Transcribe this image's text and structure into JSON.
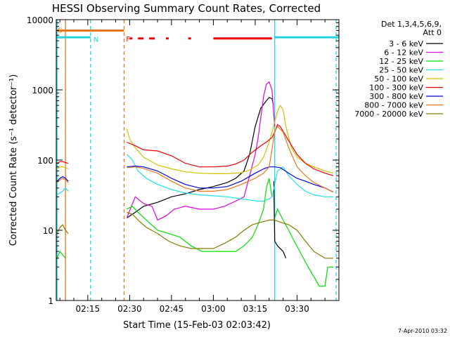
{
  "chart_data": {
    "type": "line",
    "title": "HESSI Observing Summary Count Rates, Corrected",
    "xlabel": "Start Time (15-Feb-03 02:03:42)",
    "ylabel": "Corrected Count Rate (s⁻¹ detector⁻¹)",
    "y_scale": "log",
    "ylim": [
      1,
      10000
    ],
    "xlim": [
      "02:03:42",
      "03:45:00"
    ],
    "x_ticks": [
      "02:15",
      "02:30",
      "02:45",
      "03:00",
      "03:15",
      "03:30"
    ],
    "y_ticks": [
      "1",
      "10",
      "100",
      "1000",
      "10000"
    ],
    "grid": false,
    "legend": {
      "title_lines": [
        "Det 1,3,4,5,6,9,",
        "Att 0"
      ],
      "position": "right"
    },
    "annotations": {
      "timestamp": "7-Apr-2010 03:32"
    },
    "flag_bars": {
      "letters": [
        "S",
        "N",
        "F"
      ],
      "saa": {
        "label": "S",
        "from": "02:04",
        "to": "02:28",
        "y": 7000,
        "color": "#e8761c"
      },
      "night_bars": [
        {
          "from": "02:03:42",
          "to": "02:16",
          "y": 5600,
          "color": "#22d4e0"
        },
        {
          "from": "03:22",
          "to": "03:45",
          "y": 5600,
          "color": "#22d4e0"
        }
      ],
      "night_label": {
        "label": "N",
        "at": "02:17"
      },
      "flare_label": {
        "label": "F",
        "at": "02:28"
      },
      "flare_segments": [
        {
          "from": "02:30",
          "to": "02:31",
          "color": "#ee0000"
        },
        {
          "from": "02:33",
          "to": "02:35",
          "color": "#ee0000"
        },
        {
          "from": "02:37",
          "to": "02:39",
          "color": "#ee0000"
        },
        {
          "from": "02:43",
          "to": "02:44",
          "color": "#ee0000"
        },
        {
          "from": "02:51",
          "to": "02:52",
          "color": "#ee0000"
        },
        {
          "from": "03:00",
          "to": "03:21",
          "color": "#ee0000"
        }
      ],
      "flare_y": 5400
    },
    "vlines": [
      {
        "t": "02:04",
        "color": "#22d4e0",
        "style": "solid"
      },
      {
        "t": "02:07",
        "color": "#e8761c",
        "style": "solid"
      },
      {
        "t": "02:16",
        "color": "#22d4e0",
        "style": "dashed"
      },
      {
        "t": "02:28",
        "color": "#e8761c",
        "style": "dashed"
      },
      {
        "t": "03:22",
        "color": "#22d4e0",
        "style": "solid"
      },
      {
        "t": "03:44",
        "color": "#22d4e0",
        "style": "dashed"
      }
    ],
    "series": [
      {
        "name": "3 - 6 keV",
        "color": "#000000",
        "segments": [
          {
            "x": [
              "02:29",
              "02:32",
              "02:35",
              "02:40",
              "02:45",
              "02:50",
              "02:55",
              "03:00",
              "03:05",
              "03:08",
              "03:11",
              "03:13",
              "03:15",
              "03:17",
              "03:19",
              "03:20",
              "03:21",
              "03:21:30"
            ],
            "y": [
              15,
              18,
              22,
              25,
              30,
              33,
              38,
              42,
              48,
              55,
              70,
              120,
              300,
              550,
              700,
              780,
              750,
              620
            ]
          },
          {
            "x": [
              "03:21:40",
              "03:22",
              "03:23",
              "03:25",
              "03:26"
            ],
            "y": [
              50,
              7,
              6,
              5,
              4
            ]
          }
        ]
      },
      {
        "name": "6 - 12 keV",
        "color": "#e000e0",
        "segments": [
          {
            "x": [
              "02:29",
              "02:32",
              "02:35",
              "02:38",
              "02:40",
              "02:43",
              "02:46",
              "02:50",
              "02:55",
              "03:00",
              "03:04",
              "03:08",
              "03:11",
              "03:13",
              "03:15",
              "03:16",
              "03:17",
              "03:18",
              "03:19",
              "03:20",
              "03:21",
              "03:22"
            ],
            "y": [
              15,
              30,
              24,
              22,
              14,
              16,
              20,
              22,
              20,
              20,
              22,
              26,
              30,
              60,
              120,
              200,
              400,
              800,
              1200,
              1300,
              1000,
              300
            ]
          }
        ]
      },
      {
        "name": "12 - 25 keV",
        "color": "#00e000",
        "segments": [
          {
            "x": [
              "02:04",
              "02:05",
              "02:07"
            ],
            "y": [
              4,
              5,
              4
            ]
          },
          {
            "x": [
              "02:29",
              "02:31",
              "02:33",
              "02:36",
              "02:40",
              "02:44",
              "02:48",
              "02:52",
              "02:56",
              "03:00",
              "03:04",
              "03:08",
              "03:11",
              "03:14",
              "03:16",
              "03:18",
              "03:19",
              "03:20",
              "03:21"
            ],
            "y": [
              20,
              22,
              18,
              14,
              10,
              9,
              8,
              6,
              5,
              5,
              5,
              5,
              6,
              8,
              12,
              20,
              40,
              55,
              30
            ]
          },
          {
            "x": [
              "03:22",
              "03:23",
              "03:25",
              "03:27",
              "03:29",
              "03:31",
              "03:34",
              "03:38",
              "03:40",
              "03:41",
              "03:42",
              "03:43"
            ],
            "y": [
              15,
              20,
              14,
              10,
              7,
              5,
              3,
              1.6,
              1.6,
              3,
              3,
              3
            ]
          }
        ]
      },
      {
        "name": "25 - 50 keV",
        "color": "#22e0e8",
        "segments": [
          {
            "x": [
              "02:04",
              "02:05",
              "02:06",
              "02:07",
              "02:08"
            ],
            "y": [
              32,
              34,
              36,
              40,
              36
            ]
          },
          {
            "x": [
              "02:29",
              "02:31",
              "02:33",
              "02:36",
              "02:40",
              "02:45",
              "02:50",
              "02:55",
              "03:00",
              "03:05",
              "03:10",
              "03:13",
              "03:16",
              "03:18",
              "03:20",
              "03:21",
              "03:22",
              "03:23",
              "03:25",
              "03:27",
              "03:30",
              "03:33",
              "03:36",
              "03:40",
              "03:43"
            ],
            "y": [
              120,
              100,
              70,
              55,
              45,
              38,
              34,
              32,
              31,
              30,
              28,
              27,
              26,
              26,
              28,
              30,
              45,
              70,
              80,
              60,
              45,
              36,
              32,
              30,
              30
            ]
          }
        ]
      },
      {
        "name": "50 - 100 keV",
        "color": "#d4c000",
        "segments": [
          {
            "x": [
              "02:04",
              "02:05",
              "02:06",
              "02:07",
              "02:08"
            ],
            "y": [
              75,
              80,
              80,
              78,
              75
            ]
          },
          {
            "x": [
              "02:29",
              "02:30",
              "02:32",
              "02:35",
              "02:40",
              "02:45",
              "02:50",
              "02:55",
              "03:00",
              "03:05",
              "03:10",
              "03:13",
              "03:16",
              "03:18",
              "03:20",
              "03:21",
              "03:22",
              "03:23",
              "03:24",
              "03:25",
              "03:26",
              "03:28",
              "03:30",
              "03:33",
              "03:36",
              "03:40",
              "03:43"
            ],
            "y": [
              280,
              200,
              150,
              110,
              85,
              75,
              68,
              65,
              64,
              64,
              66,
              72,
              85,
              110,
              180,
              250,
              350,
              500,
              600,
              520,
              300,
              150,
              110,
              90,
              80,
              70,
              65
            ]
          }
        ]
      },
      {
        "name": "100 - 300 keV",
        "color": "#ee0000",
        "segments": [
          {
            "x": [
              "02:04",
              "02:05",
              "02:06",
              "02:07",
              "02:08"
            ],
            "y": [
              90,
              95,
              95,
              92,
              90
            ]
          },
          {
            "x": [
              "02:29",
              "02:32",
              "02:35",
              "02:40",
              "02:45",
              "02:50",
              "02:55",
              "03:00",
              "03:05",
              "03:08",
              "03:11",
              "03:14",
              "03:17",
              "03:19",
              "03:21",
              "03:22",
              "03:23",
              "03:24",
              "03:26",
              "03:30",
              "03:33",
              "03:36",
              "03:40",
              "03:43"
            ],
            "y": [
              180,
              160,
              140,
              135,
              115,
              90,
              80,
              80,
              82,
              88,
              100,
              130,
              160,
              180,
              210,
              250,
              320,
              300,
              220,
              120,
              90,
              75,
              65,
              60
            ]
          }
        ]
      },
      {
        "name": "300 - 800 keV",
        "color": "#0000e0",
        "segments": [
          {
            "x": [
              "02:04",
              "02:05",
              "02:06",
              "02:07",
              "02:08"
            ],
            "y": [
              50,
              55,
              58,
              55,
              50
            ]
          },
          {
            "x": [
              "02:29",
              "02:32",
              "02:35",
              "02:40",
              "02:45",
              "02:50",
              "02:55",
              "03:00",
              "03:05",
              "03:10",
              "03:15",
              "03:18",
              "03:20",
              "03:22",
              "03:24",
              "03:27",
              "03:30",
              "03:33",
              "03:36",
              "03:40",
              "03:43"
            ],
            "y": [
              80,
              82,
              80,
              70,
              55,
              45,
              40,
              40,
              42,
              50,
              65,
              75,
              80,
              80,
              78,
              65,
              55,
              50,
              45,
              40,
              35
            ]
          }
        ]
      },
      {
        "name": "800 - 7000 keV",
        "color": "#e8761c",
        "segments": [
          {
            "x": [
              "02:04",
              "02:05",
              "02:06",
              "02:07",
              "02:08"
            ],
            "y": [
              48,
              52,
              55,
              52,
              48
            ]
          },
          {
            "x": [
              "02:29",
              "02:32",
              "02:35",
              "02:40",
              "02:45",
              "02:50",
              "02:55",
              "03:00",
              "03:05",
              "03:10",
              "03:15",
              "03:18",
              "03:20",
              "03:21",
              "03:22",
              "03:23",
              "03:25",
              "03:27",
              "03:30",
              "03:33",
              "03:36",
              "03:40",
              "03:43"
            ],
            "y": [
              78,
              80,
              76,
              65,
              50,
              40,
              36,
              36,
              38,
              45,
              55,
              65,
              80,
              140,
              260,
              300,
              250,
              150,
              80,
              60,
              48,
              40,
              35
            ]
          }
        ]
      },
      {
        "name": "7000 - 20000 keV",
        "color": "#8b7a00",
        "segments": [
          {
            "x": [
              "02:04",
              "02:05",
              "02:06",
              "02:07",
              "02:08"
            ],
            "y": [
              9,
              11,
              12,
              10,
              9
            ]
          },
          {
            "x": [
              "02:29",
              "02:31",
              "02:33",
              "02:36",
              "02:40",
              "02:44",
              "02:48",
              "02:52",
              "02:56",
              "03:00",
              "03:04",
              "03:08",
              "03:11",
              "03:14",
              "03:17",
              "03:20",
              "03:22",
              "03:24",
              "03:27",
              "03:30",
              "03:33",
              "03:36",
              "03:40",
              "03:43"
            ],
            "y": [
              18,
              17,
              14,
              11,
              9,
              7,
              6,
              5.5,
              5.5,
              5.5,
              6.5,
              8,
              10,
              12,
              13,
              14,
              14,
              13,
              12,
              10,
              7,
              5,
              4,
              4
            ]
          }
        ]
      }
    ]
  }
}
